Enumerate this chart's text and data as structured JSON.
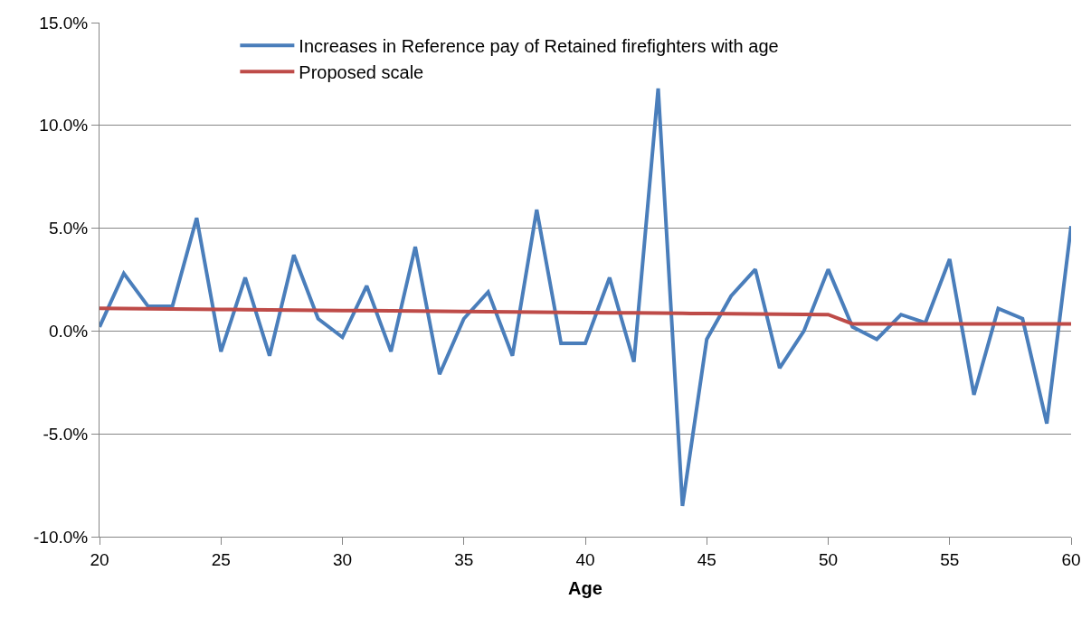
{
  "chart_data": {
    "type": "line",
    "xlabel": "Age",
    "x": [
      20,
      21,
      22,
      23,
      24,
      25,
      26,
      27,
      28,
      29,
      30,
      31,
      32,
      33,
      34,
      35,
      36,
      37,
      38,
      39,
      40,
      41,
      42,
      43,
      44,
      45,
      46,
      47,
      48,
      49,
      50,
      51,
      52,
      53,
      54,
      55,
      56,
      57,
      58,
      59,
      60
    ],
    "series": [
      {
        "name": "Increases in Reference pay of Retained firefighters with age",
        "color": "#4a7ebb",
        "values": [
          0.2,
          2.8,
          1.2,
          1.2,
          5.5,
          -1.0,
          2.6,
          -1.2,
          3.7,
          0.6,
          -0.3,
          2.2,
          -1.0,
          4.1,
          -2.1,
          0.6,
          1.9,
          -1.2,
          5.9,
          -0.6,
          -0.6,
          2.6,
          -1.5,
          11.8,
          -8.5,
          -0.4,
          1.7,
          3.0,
          -1.8,
          0.0,
          3.0,
          0.2,
          -0.4,
          0.8,
          0.4,
          3.5,
          -3.1,
          1.1,
          0.6,
          -4.5,
          5.1
        ]
      },
      {
        "name": "Proposed scale",
        "color": "#be4b48",
        "values": [
          1.1,
          1.09,
          1.08,
          1.07,
          1.06,
          1.05,
          1.04,
          1.03,
          1.02,
          1.01,
          1.0,
          0.99,
          0.98,
          0.97,
          0.96,
          0.95,
          0.94,
          0.93,
          0.92,
          0.91,
          0.9,
          0.89,
          0.88,
          0.87,
          0.86,
          0.85,
          0.84,
          0.83,
          0.82,
          0.81,
          0.8,
          0.35,
          0.35,
          0.35,
          0.35,
          0.35,
          0.35,
          0.35,
          0.35,
          0.35,
          0.35
        ]
      }
    ],
    "xlim": [
      20,
      60
    ],
    "xticks": [
      20,
      25,
      30,
      35,
      40,
      45,
      50,
      55,
      60
    ],
    "ylim": [
      -10,
      15
    ],
    "yticks": [
      {
        "value": -10,
        "label": "-10.0%"
      },
      {
        "value": -5,
        "label": "-5.0%"
      },
      {
        "value": 0,
        "label": "0.0%"
      },
      {
        "value": 5,
        "label": "5.0%"
      },
      {
        "value": 10,
        "label": "10.0%"
      },
      {
        "value": 15,
        "label": "15.0%"
      }
    ],
    "grid": "y",
    "legend": "top",
    "marker": "none",
    "line_style": "solid"
  }
}
